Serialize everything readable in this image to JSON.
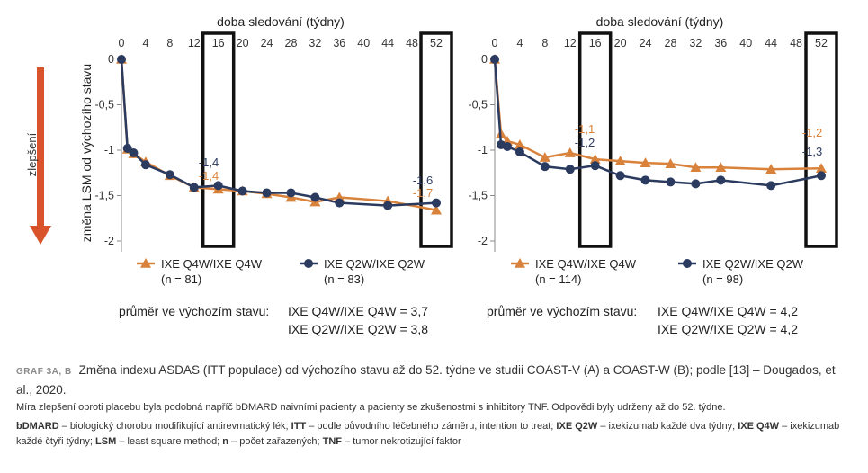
{
  "shared": {
    "axis_top_label": "doba sledování (týdny)",
    "y_axis_label": "změna LSM od výchozího stavu",
    "arrow_label": "zlepšení",
    "colors": {
      "q4w": "#d9823b",
      "q2w": "#2b3a5f",
      "arrow": "#d9532b",
      "box": "#111111",
      "grid_text": "#333333"
    }
  },
  "chart_data": [
    {
      "type": "line",
      "panel": "A",
      "xlabel": "doba sledování (týdny)",
      "ylabel": "změna LSM od výchozího stavu",
      "xticks": [
        0,
        4,
        8,
        12,
        16,
        20,
        24,
        28,
        32,
        36,
        40,
        44,
        48,
        52
      ],
      "yticks": [
        0,
        -0.5,
        -1,
        -1.5,
        -2
      ],
      "ytick_labels": [
        "0",
        "-0,5",
        "-1",
        "-1,5",
        "-2"
      ],
      "xlim": [
        0,
        52
      ],
      "ylim": [
        -2,
        0
      ],
      "highlight_weeks": [
        16,
        52
      ],
      "series": [
        {
          "name": "IXE Q4W/IXE Q4W",
          "n": "(n = 81)",
          "color": "#d9823b",
          "marker": "triangle",
          "x": [
            0,
            1,
            2,
            4,
            8,
            12,
            16,
            20,
            24,
            28,
            32,
            36,
            44,
            52
          ],
          "y": [
            0,
            -0.99,
            -1.04,
            -1.13,
            -1.28,
            -1.41,
            -1.43,
            -1.45,
            -1.48,
            -1.52,
            -1.57,
            -1.52,
            -1.56,
            -1.66
          ]
        },
        {
          "name": "IXE Q2W/IXE Q2W",
          "n": "(n = 83)",
          "color": "#2b3a5f",
          "marker": "circle",
          "x": [
            0,
            1,
            2,
            4,
            8,
            12,
            16,
            20,
            24,
            28,
            32,
            36,
            44,
            52
          ],
          "y": [
            0,
            -0.98,
            -1.03,
            -1.16,
            -1.27,
            -1.41,
            -1.39,
            -1.45,
            -1.47,
            -1.47,
            -1.52,
            -1.58,
            -1.61,
            -1.58
          ]
        }
      ],
      "annotations": [
        {
          "week": 16,
          "q2w": "-1,4",
          "q4w": "-1,4"
        },
        {
          "week": 52,
          "q2w": "-1,6",
          "q4w": "-1,7"
        }
      ],
      "baseline_prefix": "průměr ve výchozím stavu:",
      "baseline_q4w": "IXE Q4W/IXE Q4W = 3,7",
      "baseline_q2w": "IXE Q2W/IXE Q2W = 3,8"
    },
    {
      "type": "line",
      "panel": "B",
      "xlabel": "doba sledování (týdny)",
      "xticks": [
        0,
        4,
        8,
        12,
        16,
        20,
        24,
        28,
        32,
        36,
        40,
        44,
        48,
        52
      ],
      "yticks": [
        0,
        -0.5,
        -1,
        -1.5,
        -2
      ],
      "ytick_labels": [
        "0",
        "-0,5",
        "-1",
        "-1,5",
        "-2"
      ],
      "xlim": [
        0,
        52
      ],
      "ylim": [
        -2,
        0
      ],
      "highlight_weeks": [
        16,
        52
      ],
      "series": [
        {
          "name": "IXE Q4W/IXE Q4W",
          "n": "(n = 114)",
          "color": "#d9823b",
          "marker": "triangle",
          "x": [
            0,
            1,
            2,
            4,
            8,
            12,
            16,
            20,
            24,
            28,
            32,
            36,
            44,
            52
          ],
          "y": [
            0,
            -0.82,
            -0.9,
            -0.94,
            -1.08,
            -1.03,
            -1.1,
            -1.12,
            -1.14,
            -1.15,
            -1.19,
            -1.19,
            -1.21,
            -1.2
          ]
        },
        {
          "name": "IXE Q2W/IXE Q2W",
          "n": "(n = 98)",
          "color": "#2b3a5f",
          "marker": "circle",
          "x": [
            0,
            1,
            2,
            4,
            8,
            12,
            16,
            20,
            24,
            28,
            32,
            36,
            44,
            52
          ],
          "y": [
            0,
            -0.94,
            -0.96,
            -1.02,
            -1.18,
            -1.21,
            -1.17,
            -1.28,
            -1.33,
            -1.35,
            -1.37,
            -1.33,
            -1.39,
            -1.28
          ]
        }
      ],
      "annotations": [
        {
          "week": 16,
          "q4w": "-1,1",
          "q2w": "-1,2"
        },
        {
          "week": 52,
          "q4w": "-1,2",
          "q2w": "-1,3"
        }
      ],
      "baseline_prefix": "průměr ve výchozím stavu:",
      "baseline_q4w": "IXE Q4W/IXE Q4W = 4,2",
      "baseline_q2w": "IXE Q2W/IXE Q2W = 4,2"
    }
  ],
  "caption": {
    "label": "GRAF 3A, B",
    "title": "Změna indexu ASDAS (ITT populace) od výchozího stavu až do 52. týdne ve studii COAST-V (A) a COAST-W (B); podle [13] – Dougados, et al., 2020.",
    "note": "Míra zlepšení oproti placebu byla podobná napříč bDMARD naivními pacienty a pacienty se zkušenostmi s inhibitory TNF. Odpovědi byly udrženy až do 52. týdne.",
    "abbreviations": [
      {
        "term": "bDMARD",
        "def": " – biologický chorobu modifikující antirevmatický lék; "
      },
      {
        "term": "ITT",
        "def": " – podle původního léčebného záměru, intention to treat; "
      },
      {
        "term": "IXE Q2W",
        "def": " – ixekizumab každé dva týdny; "
      },
      {
        "term": "IXE Q4W",
        "def": " – ixekizumab každé čtyři týdny; "
      },
      {
        "term": "LSM",
        "def": " – least square method; "
      },
      {
        "term": "n",
        "def": " – počet zařazených; "
      },
      {
        "term": "TNF",
        "def": " – tumor nekrotizující faktor"
      }
    ]
  }
}
